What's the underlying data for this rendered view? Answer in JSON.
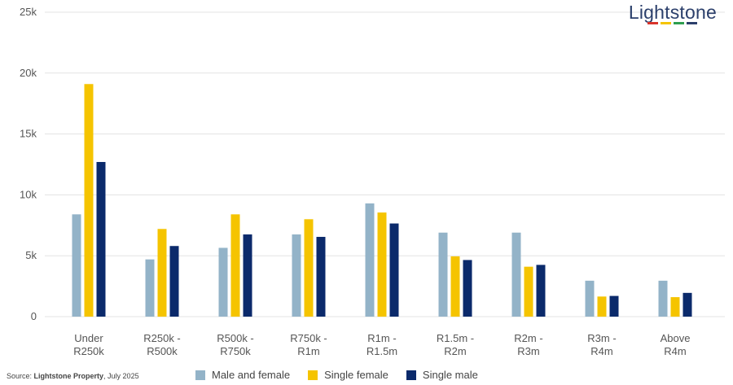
{
  "brand": {
    "name": "Lightstone",
    "stripe_colors": [
      "#d9342b",
      "#f5c400",
      "#2e9e4f",
      "#2b3f6b"
    ]
  },
  "source": {
    "prefix": "Source: ",
    "name": "Lightstone Property",
    "date": ", July 2025"
  },
  "chart_data": {
    "type": "bar",
    "title": "",
    "xlabel": "",
    "ylabel": "",
    "ylim": [
      0,
      25000
    ],
    "yticks": [
      0,
      5000,
      10000,
      15000,
      20000,
      25000
    ],
    "ytick_labels": [
      "0",
      "5k",
      "10k",
      "15k",
      "20k",
      "25k"
    ],
    "grid": true,
    "legend_position": "bottom",
    "categories": [
      [
        "Under",
        "R250k"
      ],
      [
        "R250k -",
        "R500k"
      ],
      [
        "R500k -",
        "R750k"
      ],
      [
        "R750k -",
        "R1m"
      ],
      [
        "R1m -",
        "R1.5m"
      ],
      [
        "R1.5m -",
        "R2m"
      ],
      [
        "R2m -",
        "R3m"
      ],
      [
        "R3m -",
        "R4m"
      ],
      [
        "Above",
        "R4m"
      ]
    ],
    "series": [
      {
        "name": "Male and female",
        "color": "#93b3c8",
        "values": [
          8400,
          4700,
          5650,
          6750,
          9300,
          6900,
          6900,
          2950,
          2950
        ]
      },
      {
        "name": "Single female",
        "color": "#f5c400",
        "values": [
          19100,
          7200,
          8400,
          8000,
          8550,
          4950,
          4100,
          1650,
          1600
        ]
      },
      {
        "name": "Single male",
        "color": "#0b2a6b",
        "values": [
          12700,
          5800,
          6750,
          6550,
          7650,
          4650,
          4250,
          1700,
          1950
        ]
      }
    ]
  }
}
